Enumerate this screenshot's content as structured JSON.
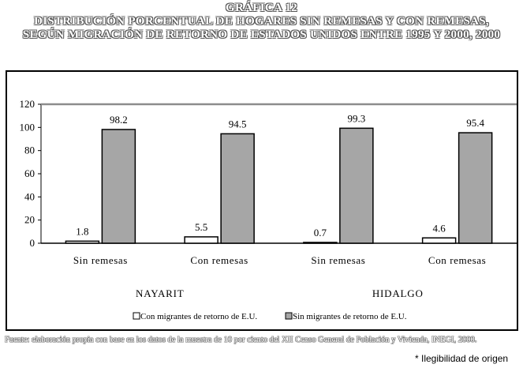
{
  "title": {
    "line1": "GRÁFICA 12",
    "line2": "DISTRIBUCIÓN PORCENTUAL DE HOGARES SIN REMESAS Y CON REMESAS,",
    "line3": "SEGÚN MIGRACIÓN DE RETORNO DE ESTADOS UNIDOS ENTRE 1995 Y 2000, 2000"
  },
  "chart_data": {
    "type": "bar",
    "categories": [
      "Sin remesas",
      "Con remesas",
      "Sin remesas",
      "Con remesas"
    ],
    "groups": [
      "NAYARIT",
      "HIDALGO"
    ],
    "series": [
      {
        "name": "Con migrantes de retorno de E.U.",
        "values": [
          1.8,
          5.5,
          0.7,
          4.6
        ],
        "color": "#ffffff"
      },
      {
        "name": "Sin migrantes de retorno de E.U.",
        "values": [
          98.2,
          94.5,
          99.3,
          95.4
        ],
        "color": "#a6a6a6"
      }
    ],
    "data_labels": [
      "1.8",
      "5.5",
      "0.7",
      "4.6",
      "98.2",
      "94.5",
      "99.3",
      "95.4"
    ],
    "ylim": [
      0,
      120
    ],
    "yticks": [
      0,
      20,
      40,
      60,
      80,
      100,
      120
    ],
    "grid": false,
    "legend_position": "bottom"
  },
  "source": "Fuente: elaboración propia con base en los datos de la muestra de 10 por ciento del XII Censo General de Población y Vivienda, INEGI, 2000.",
  "note": "* Ilegibilidad de origen"
}
